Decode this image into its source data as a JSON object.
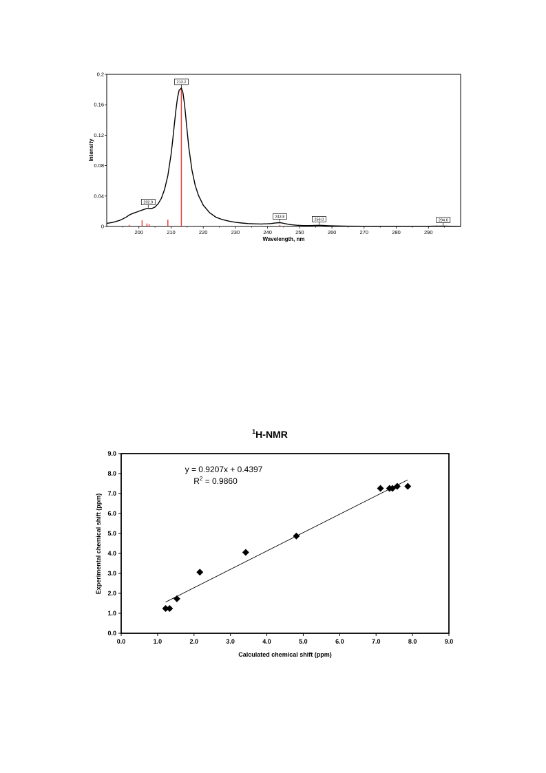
{
  "chart_data": [
    {
      "type": "line",
      "xlabel": "Wavelength, nm",
      "ylabel": "Intensity",
      "xlim": [
        190,
        300
      ],
      "ylim": [
        0,
        0.2
      ],
      "x_ticks": [
        "200",
        "210",
        "220",
        "230",
        "240",
        "250",
        "260",
        "270",
        "280",
        "290"
      ],
      "y_ticks": [
        "0",
        "0.04",
        "0.08",
        "0.12",
        "0.16",
        "0.2"
      ],
      "grid": false,
      "colors": {
        "curve": "#000000",
        "sticks": "#e8413a"
      },
      "peak_labels": [
        "202.9",
        "213.2",
        "243.8",
        "256.0",
        "294.6"
      ],
      "peaks": [
        {
          "x": 202.9,
          "y": 0.024
        },
        {
          "x": 213.2,
          "y": 0.182
        },
        {
          "x": 243.8,
          "y": 0.005
        },
        {
          "x": 256.0,
          "y": 0.0015
        },
        {
          "x": 294.6,
          "y": 0.0005
        }
      ],
      "sticks": [
        {
          "x": 197.0,
          "y": 0.002
        },
        {
          "x": 201.0,
          "y": 0.008
        },
        {
          "x": 202.5,
          "y": 0.004
        },
        {
          "x": 203.2,
          "y": 0.003
        },
        {
          "x": 209.0,
          "y": 0.009
        },
        {
          "x": 213.2,
          "y": 0.183
        },
        {
          "x": 243.8,
          "y": 0.002
        }
      ],
      "curve": {
        "x": [
          190,
          192,
          194,
          196,
          197,
          198,
          199,
          200,
          201,
          202,
          202.9,
          203.5,
          204,
          205,
          206,
          207,
          208,
          209,
          210,
          210.5,
          211,
          211.5,
          212,
          212.5,
          213.2,
          213.7,
          214.2,
          214.8,
          215.5,
          216.5,
          217.5,
          218.5,
          220,
          222,
          224,
          226,
          228,
          230,
          232,
          234,
          236,
          238,
          240,
          241,
          242,
          243,
          243.8,
          244.5,
          245.5,
          247,
          249,
          251,
          253,
          255,
          256,
          257,
          259,
          261,
          265,
          270,
          280,
          290,
          294.6,
          297,
          300
        ],
        "y": [
          0.004,
          0.0055,
          0.008,
          0.012,
          0.015,
          0.017,
          0.0185,
          0.02,
          0.0215,
          0.023,
          0.024,
          0.0235,
          0.0235,
          0.0255,
          0.03,
          0.037,
          0.049,
          0.067,
          0.095,
          0.113,
          0.133,
          0.153,
          0.169,
          0.179,
          0.182,
          0.176,
          0.16,
          0.134,
          0.104,
          0.074,
          0.054,
          0.041,
          0.028,
          0.018,
          0.012,
          0.009,
          0.007,
          0.0055,
          0.0045,
          0.0038,
          0.0034,
          0.0033,
          0.0035,
          0.0038,
          0.0043,
          0.0048,
          0.005,
          0.0046,
          0.0036,
          0.0024,
          0.0016,
          0.0012,
          0.0012,
          0.0014,
          0.0015,
          0.0014,
          0.001,
          0.0007,
          0.0004,
          0.0003,
          0.0003,
          0.0003,
          0.0005,
          0.0003,
          0.0002
        ]
      }
    },
    {
      "type": "scatter",
      "title": "H-NMR",
      "title_superscript": "1",
      "xlabel": "Calculated chemical shift (ppm)",
      "ylabel": "Experimental chemical shift (ppm)",
      "xlim": [
        0,
        9
      ],
      "ylim": [
        0,
        9
      ],
      "x_ticks": [
        "0.0",
        "1.0",
        "2.0",
        "3.0",
        "4.0",
        "5.0",
        "6.0",
        "7.0",
        "8.0",
        "9.0"
      ],
      "y_ticks": [
        "0.0",
        "1.0",
        "2.0",
        "3.0",
        "4.0",
        "5.0",
        "6.0",
        "7.0",
        "8.0",
        "9.0"
      ],
      "grid": false,
      "marker": "diamond",
      "colors": {
        "points": "#000000",
        "trendline": "#000000"
      },
      "points": [
        {
          "x": 1.22,
          "y": 1.24
        },
        {
          "x": 1.33,
          "y": 1.24
        },
        {
          "x": 1.53,
          "y": 1.73
        },
        {
          "x": 2.16,
          "y": 3.06
        },
        {
          "x": 3.42,
          "y": 4.05
        },
        {
          "x": 4.81,
          "y": 4.87
        },
        {
          "x": 7.12,
          "y": 7.26
        },
        {
          "x": 7.37,
          "y": 7.26
        },
        {
          "x": 7.45,
          "y": 7.26
        },
        {
          "x": 7.58,
          "y": 7.36
        },
        {
          "x": 7.87,
          "y": 7.36
        }
      ],
      "trendline": {
        "slope": 0.9207,
        "intercept": 0.4397,
        "x_range": [
          1.22,
          7.87
        ]
      },
      "equation_text": "y = 0.9207x + 0.4397",
      "r2_prefix": "R",
      "r2_superscript": "2",
      "r2_value_text": " = 0.9860"
    }
  ]
}
